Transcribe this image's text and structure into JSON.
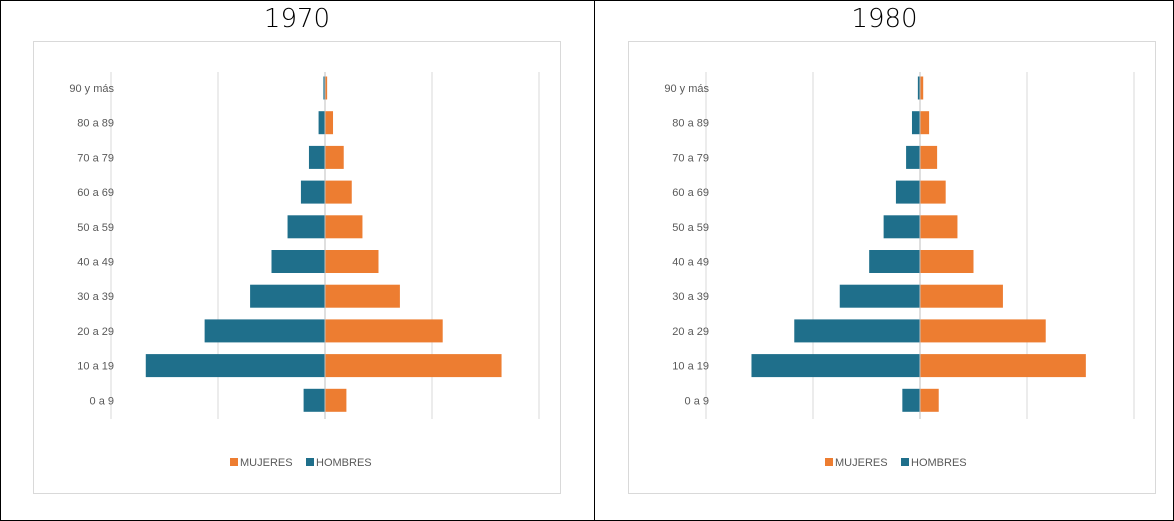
{
  "chart_data": [
    {
      "type": "bar",
      "orientation": "horizontal",
      "title": "1970",
      "categories": [
        "0 a 9",
        "10 a 19",
        "20 a 29",
        "30 a 39",
        "40 a 49",
        "50 a 59",
        "60 a 69",
        "70 a 79",
        "80 a 89",
        "90 y más"
      ],
      "series": [
        {
          "name": "MUJERES",
          "color": "#ed7d31",
          "values": [
            4,
            33,
            22,
            14,
            10,
            7,
            5,
            3.5,
            1.5,
            0.4
          ]
        },
        {
          "name": "HOMBRES",
          "color": "#1f6f8b",
          "values": [
            4,
            33.5,
            22.5,
            14,
            10,
            7,
            4.5,
            3,
            1.2,
            0.3
          ]
        }
      ],
      "xlim": [
        -40,
        40
      ],
      "grid": true,
      "legend": "bottom"
    },
    {
      "type": "bar",
      "orientation": "horizontal",
      "title": "1980",
      "categories": [
        "0 a 9",
        "10 a 19",
        "20 a 29",
        "30 a 39",
        "40 a 49",
        "50 a 59",
        "60 a 69",
        "70 a 79",
        "80 a 89",
        "90 y más"
      ],
      "series": [
        {
          "name": "MUJERES",
          "color": "#ed7d31",
          "values": [
            3.5,
            31,
            23.5,
            15.5,
            10,
            7,
            4.8,
            3.2,
            1.7,
            0.6
          ]
        },
        {
          "name": "HOMBRES",
          "color": "#1f6f8b",
          "values": [
            3.3,
            31.5,
            23.5,
            15,
            9.5,
            6.8,
            4.5,
            2.6,
            1.5,
            0.4
          ]
        }
      ],
      "xlim": [
        -40,
        40
      ],
      "grid": true,
      "legend": "bottom"
    }
  ]
}
